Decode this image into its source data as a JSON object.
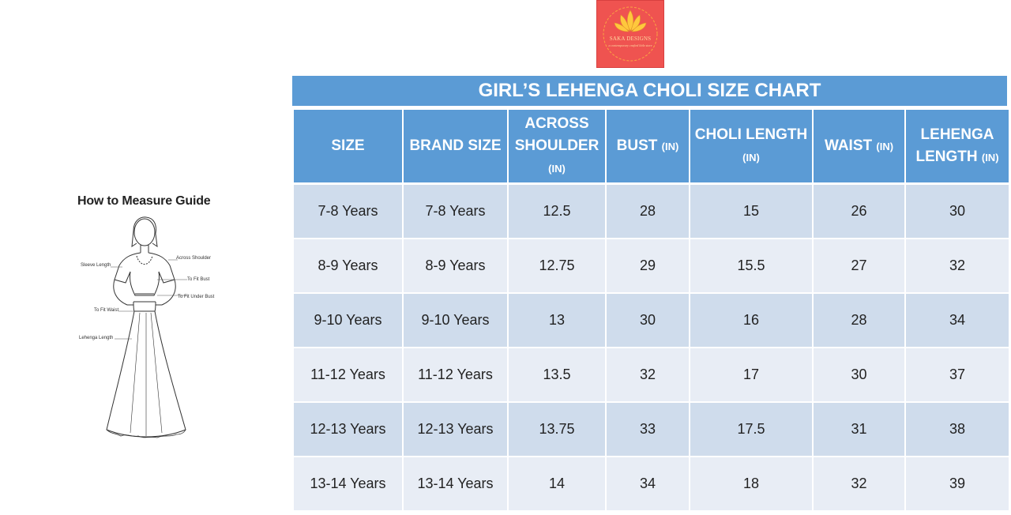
{
  "logo": {
    "name": "SAKA DESIGNS",
    "tagline": "a contemporary crafted little store",
    "colors": {
      "background": "#ef5350",
      "accent": "#ffc83d"
    }
  },
  "guide": {
    "title": "How to Measure Guide",
    "labels": {
      "across_shoulder": "Across Shoulder",
      "sleeve_length": "Sleeve Length",
      "fit_bust": "To Fit Bust",
      "fit_under_bust": "To Fit Under Bust",
      "fit_waist": "To Fit Waist",
      "lehenga_length": "Lehenga Length"
    }
  },
  "chart": {
    "title": "GIRL’S LEHENGA CHOLI SIZE CHART",
    "unit_label": "(IN)",
    "columns": {
      "size": "SIZE",
      "brand_size": "BRAND SIZE",
      "across_shoulder": "ACROSS SHOULDER",
      "bust": "BUST",
      "choli_length": "CHOLI LENGTH",
      "waist": "WAIST",
      "lehenga_length": "LEHENGA LENGTH"
    },
    "rows": [
      {
        "size": "7-8 Years",
        "brand_size": "7-8 Years",
        "across_shoulder": "12.5",
        "bust": "28",
        "choli_length": "15",
        "waist": "26",
        "lehenga_length": "30"
      },
      {
        "size": "8-9 Years",
        "brand_size": "8-9 Years",
        "across_shoulder": "12.75",
        "bust": "29",
        "choli_length": "15.5",
        "waist": "27",
        "lehenga_length": "32"
      },
      {
        "size": "9-10 Years",
        "brand_size": "9-10 Years",
        "across_shoulder": "13",
        "bust": "30",
        "choli_length": "16",
        "waist": "28",
        "lehenga_length": "34"
      },
      {
        "size": "11-12 Years",
        "brand_size": "11-12 Years",
        "across_shoulder": "13.5",
        "bust": "32",
        "choli_length": "17",
        "waist": "30",
        "lehenga_length": "37"
      },
      {
        "size": "12-13 Years",
        "brand_size": "12-13 Years",
        "across_shoulder": "13.75",
        "bust": "33",
        "choli_length": "17.5",
        "waist": "31",
        "lehenga_length": "38"
      },
      {
        "size": "13-14 Years",
        "brand_size": "13-14 Years",
        "across_shoulder": "14",
        "bust": "34",
        "choli_length": "18",
        "waist": "32",
        "lehenga_length": "39"
      }
    ],
    "colors": {
      "header": "#5b9bd5",
      "row_odd": "#cfdcec",
      "row_even": "#e8edf5"
    }
  }
}
